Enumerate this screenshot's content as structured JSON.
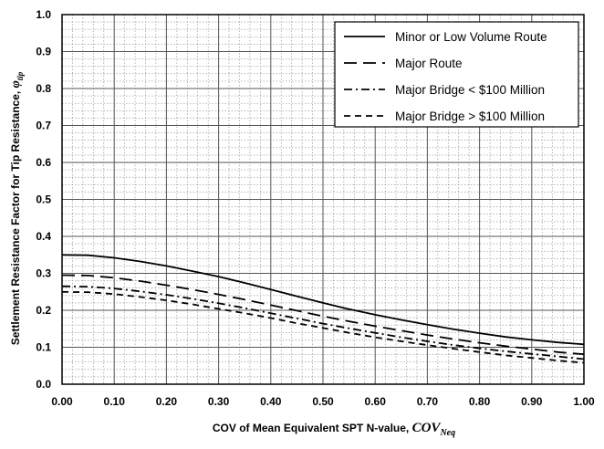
{
  "chart_data": {
    "type": "line",
    "title": "",
    "xlabel": "COV of Mean Equivalent SPT N-value, ",
    "xlabel_symbol": "COV",
    "xlabel_subscript": "Neq",
    "ylabel": "Settlement Resistance Factor for Tip Resistance, ",
    "ylabel_symbol": "φ",
    "ylabel_subscript": "tip",
    "xlim": [
      0,
      1
    ],
    "ylim": [
      0,
      1
    ],
    "x_ticks": [
      "0.00",
      "0.10",
      "0.20",
      "0.30",
      "0.40",
      "0.50",
      "0.60",
      "0.70",
      "0.80",
      "0.90",
      "1.00"
    ],
    "y_ticks": [
      "0.0",
      "0.1",
      "0.2",
      "0.3",
      "0.4",
      "0.5",
      "0.6",
      "0.7",
      "0.8",
      "0.9",
      "1.0"
    ],
    "grid": true,
    "legend_position": "top-right",
    "x": [
      0,
      0.05,
      0.1,
      0.15,
      0.2,
      0.25,
      0.3,
      0.35,
      0.4,
      0.45,
      0.5,
      0.55,
      0.6,
      0.65,
      0.7,
      0.75,
      0.8,
      0.85,
      0.9,
      0.95,
      1.0
    ],
    "series": [
      {
        "name": "Minor or Low Volume Route",
        "dash": "",
        "values": [
          0.35,
          0.349,
          0.342,
          0.332,
          0.32,
          0.306,
          0.291,
          0.274,
          0.256,
          0.238,
          0.22,
          0.203,
          0.188,
          0.174,
          0.161,
          0.149,
          0.138,
          0.128,
          0.12,
          0.113,
          0.108
        ]
      },
      {
        "name": "Major Route",
        "dash": "14,7",
        "values": [
          0.295,
          0.294,
          0.288,
          0.279,
          0.268,
          0.256,
          0.243,
          0.229,
          0.214,
          0.199,
          0.184,
          0.17,
          0.157,
          0.145,
          0.133,
          0.122,
          0.112,
          0.103,
          0.095,
          0.087,
          0.081
        ]
      },
      {
        "name": "Major Bridge < $100 Million",
        "dash": "9,4,2,4",
        "values": [
          0.265,
          0.264,
          0.259,
          0.251,
          0.242,
          0.231,
          0.219,
          0.206,
          0.192,
          0.178,
          0.164,
          0.151,
          0.139,
          0.127,
          0.116,
          0.106,
          0.097,
          0.089,
          0.082,
          0.075,
          0.068
        ]
      },
      {
        "name": "Major Bridge > $100 Million",
        "dash": "7,5",
        "values": [
          0.25,
          0.249,
          0.244,
          0.236,
          0.227,
          0.216,
          0.204,
          0.192,
          0.179,
          0.165,
          0.152,
          0.139,
          0.127,
          0.116,
          0.106,
          0.096,
          0.087,
          0.078,
          0.071,
          0.064,
          0.058
        ]
      }
    ]
  }
}
